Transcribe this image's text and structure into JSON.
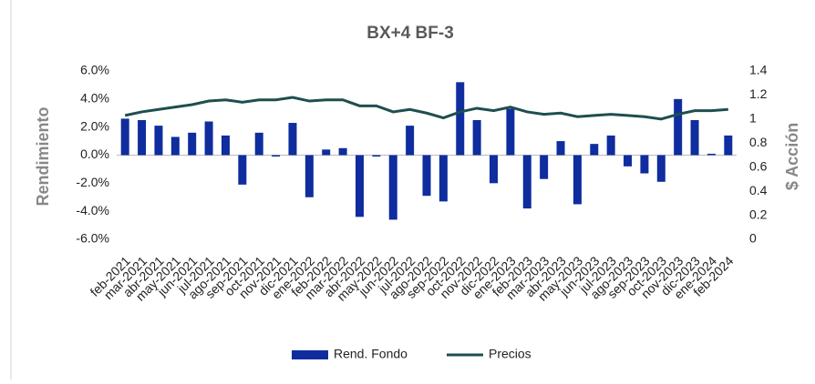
{
  "chart_data": {
    "type": "bar_line",
    "title": "BX+4  BF-3",
    "y_label": "Rendimiento",
    "y2_label": "$ Acción",
    "categories": [
      "feb-2021",
      "mar-2021",
      "abr-2021",
      "may-2021",
      "jun-2021",
      "jul-2021",
      "ago-2021",
      "sep-2021",
      "oct-2021",
      "nov-2021",
      "dic-2021",
      "ene-2022",
      "feb-2022",
      "mar-2022",
      "abr-2022",
      "may-2022",
      "jun-2022",
      "jul-2022",
      "ago-2022",
      "sep-2022",
      "oct-2022",
      "nov-2022",
      "dic-2022",
      "ene-2023",
      "feb-2023",
      "mar-2023",
      "abr-2023",
      "may-2023",
      "jun-2023",
      "jul-2023",
      "ago-2023",
      "sep-2023",
      "oct-2023",
      "nov-2023",
      "dic-2023",
      "ene-2024",
      "feb-2024"
    ],
    "series": [
      {
        "name": "Rend. Fondo",
        "type": "bar",
        "color": "#0f2d9e",
        "values": [
          2.6,
          2.5,
          2.1,
          1.3,
          1.6,
          2.4,
          1.4,
          -2.1,
          1.6,
          -0.1,
          2.3,
          -3.0,
          0.4,
          0.5,
          -4.4,
          -0.1,
          -4.6,
          2.1,
          -2.9,
          -3.3,
          5.2,
          2.5,
          -2.0,
          3.3,
          -3.8,
          -1.7,
          1.0,
          -3.5,
          0.8,
          1.4,
          -0.8,
          -1.3,
          -1.9,
          4.0,
          2.5,
          0.1,
          1.4
        ]
      },
      {
        "name": "Precios",
        "type": "line",
        "axis": "y2",
        "color": "#1f4e4f",
        "values": [
          1.03,
          1.06,
          1.08,
          1.1,
          1.12,
          1.15,
          1.16,
          1.14,
          1.16,
          1.16,
          1.18,
          1.15,
          1.16,
          1.16,
          1.11,
          1.11,
          1.06,
          1.08,
          1.05,
          1.01,
          1.06,
          1.09,
          1.07,
          1.1,
          1.06,
          1.04,
          1.05,
          1.02,
          1.03,
          1.04,
          1.03,
          1.02,
          1.0,
          1.04,
          1.07,
          1.07,
          1.08
        ]
      }
    ],
    "ylim": [
      -6,
      6
    ],
    "yticks": [
      {
        "value": -6,
        "label": "-6.0%"
      },
      {
        "value": -4,
        "label": "-4.0%"
      },
      {
        "value": -2,
        "label": "-2.0%"
      },
      {
        "value": 0,
        "label": "0.0%"
      },
      {
        "value": 2,
        "label": "2.0%"
      },
      {
        "value": 4,
        "label": "4.0%"
      },
      {
        "value": 6,
        "label": "6.0%"
      }
    ],
    "y2lim": [
      0,
      1.4
    ],
    "y2ticks": [
      0,
      0.2,
      0.4,
      0.6,
      0.8,
      1,
      1.2,
      1.4
    ],
    "legend": "bottom"
  }
}
